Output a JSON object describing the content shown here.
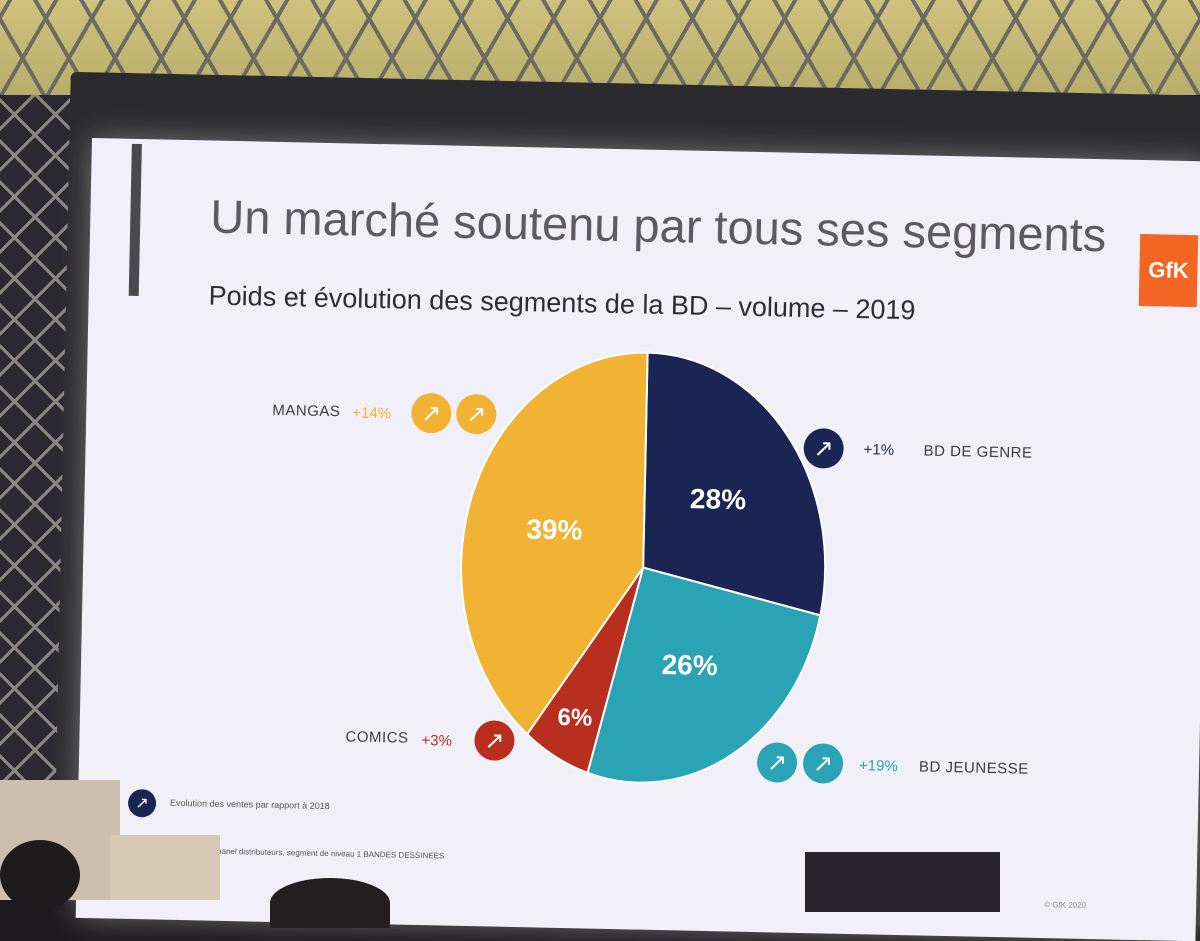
{
  "slide": {
    "title": "Un marché soutenu par tous ses segments",
    "subtitle": "Poids et évolution des segments de la BD – volume – 2019",
    "logo": "GfK",
    "legend": "Evolution des ventes par rapport à 2018",
    "source": "GfK panel distributeurs, segment de niveau 1 BANDES DESSINEES",
    "copyright": "© GfK 2020"
  },
  "chart_data": {
    "type": "pie",
    "title": "Poids et évolution des segments de la BD – volume – 2019",
    "slices": [
      {
        "name": "BD DE GENRE",
        "value": 28,
        "label": "28%",
        "change": "+1%",
        "arrows": 1,
        "color": "#1b2554"
      },
      {
        "name": "BD JEUNESSE",
        "value": 26,
        "label": "26%",
        "change": "+19%",
        "arrows": 2,
        "color": "#2aa3b5"
      },
      {
        "name": "COMICS",
        "value": 6,
        "label": "6%",
        "change": "+3%",
        "arrows": 1,
        "color": "#b82e1f"
      },
      {
        "name": "MANGAS",
        "value": 39,
        "label": "39%",
        "change": "+14%",
        "arrows": 2,
        "color": "#f2b233"
      }
    ]
  },
  "icons": {
    "arrow": "arrow-up-right-icon",
    "arrow_glyph": "↗"
  }
}
